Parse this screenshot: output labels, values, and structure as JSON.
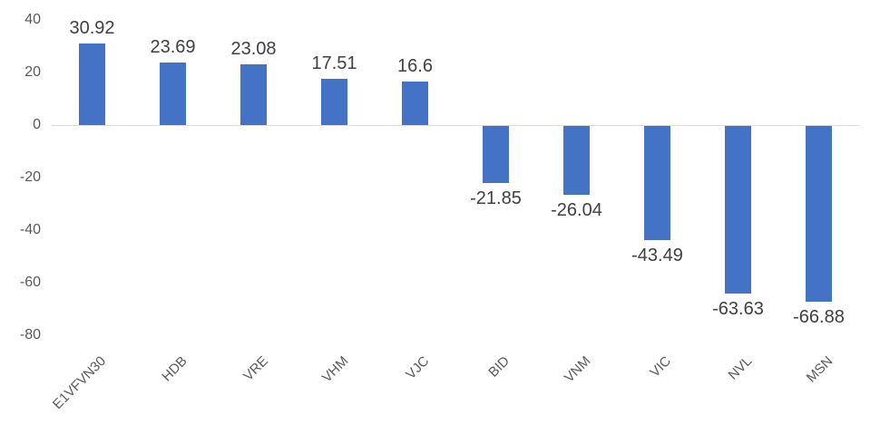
{
  "chart_data": {
    "type": "bar",
    "categories": [
      "E1VFVN30",
      "HDB",
      "VRE",
      "VHM",
      "VJC",
      "BID",
      "VNM",
      "VIC",
      "NVL",
      "MSN"
    ],
    "series": [
      {
        "name": "",
        "values": [
          30.92,
          23.69,
          23.08,
          17.51,
          16.6,
          -21.85,
          -26.04,
          -43.49,
          -63.63,
          -66.88
        ]
      }
    ],
    "value_labels": [
      "30.92",
      "23.69",
      "23.08",
      "17.51",
      "16.6",
      "-21.85",
      "-26.04",
      "-43.49",
      "-63.63",
      "-66.88"
    ],
    "yticks": [
      40,
      20,
      0,
      -20,
      -40,
      -60,
      -80
    ],
    "ylim": [
      -80,
      40
    ],
    "grid": false,
    "legend": false,
    "colors": {
      "bar": "#4472C4",
      "axis_line": "#D9D9D9",
      "tick_label": "#595959",
      "category_label": "#595959",
      "value_label": "#404040"
    }
  }
}
